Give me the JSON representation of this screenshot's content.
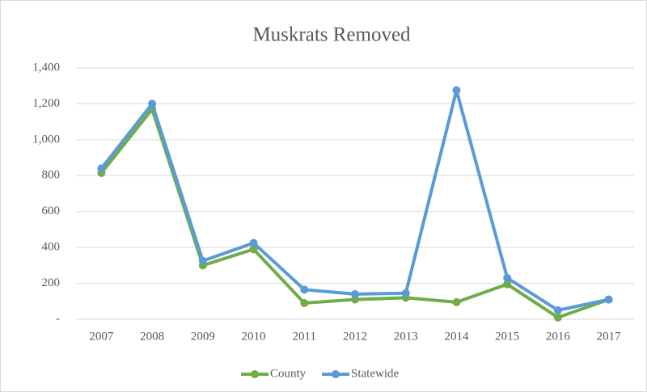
{
  "chart_data": {
    "type": "line",
    "title": "Muskrats Removed",
    "categories": [
      "2007",
      "2008",
      "2009",
      "2010",
      "2011",
      "2012",
      "2013",
      "2014",
      "2015",
      "2016",
      "2017"
    ],
    "series": [
      {
        "name": "County",
        "color": "#70ad47",
        "values": [
          815,
          1170,
          300,
          390,
          90,
          110,
          120,
          95,
          195,
          10,
          110
        ]
      },
      {
        "name": "Statewide",
        "color": "#5b9bd5",
        "values": [
          840,
          1200,
          325,
          425,
          165,
          140,
          145,
          1275,
          230,
          50,
          110
        ]
      }
    ],
    "ylim": [
      0,
      1400
    ],
    "yticks": [
      {
        "value": 0,
        "label": "-"
      },
      200,
      400,
      600,
      800,
      {
        "value": 1000,
        "label": "1,000"
      },
      {
        "value": 1200,
        "label": "1,200"
      },
      {
        "value": 1400,
        "label": "1,400"
      }
    ],
    "grid": true,
    "legend": "bottom"
  }
}
